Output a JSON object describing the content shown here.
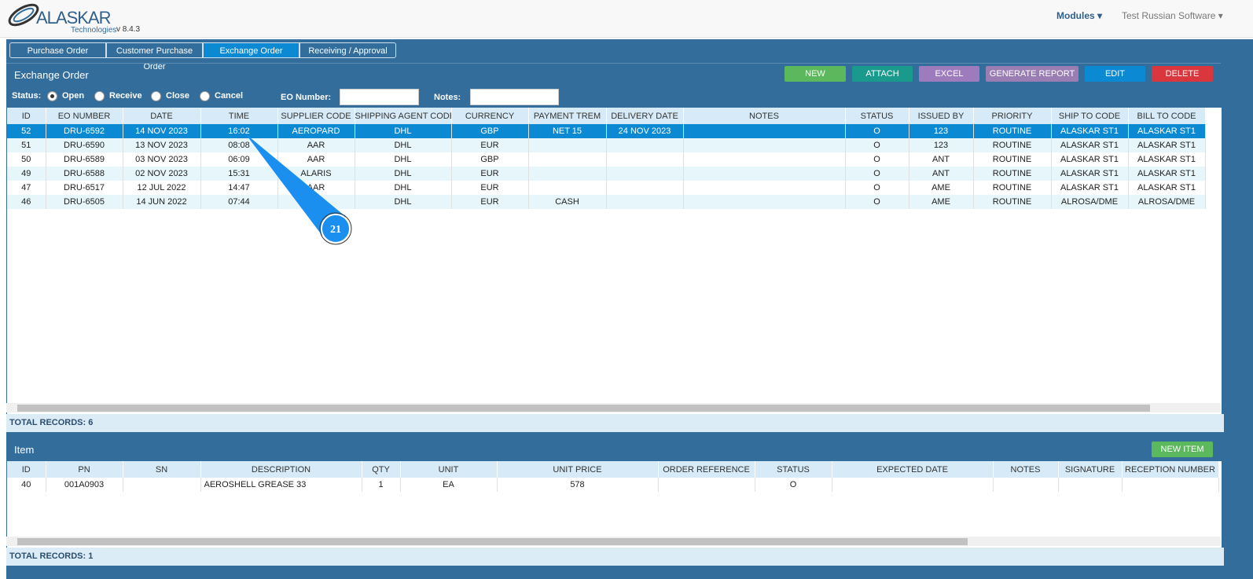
{
  "header": {
    "logo": "ALASKAR",
    "logo_sub": "Technologies",
    "version": "v 8.4.3",
    "nav": [
      "Modules",
      "Test Russian Software"
    ]
  },
  "tabs": [
    "Purchase Order",
    "Customer Purchase Order",
    "Exchange Order",
    "Receiving / Approval"
  ],
  "panel": {
    "title": "Exchange Order",
    "buttons": [
      "NEW",
      "ATTACH",
      "EXCEL",
      "GENERATE REPORT",
      "EDIT",
      "DELETE"
    ]
  },
  "filter": {
    "status_label": "Status:",
    "options": [
      "Open",
      "Receive",
      "Close",
      "Cancel"
    ],
    "eo_label": "EO Number:",
    "notes_label": "Notes:"
  },
  "orders": {
    "columns": [
      "ID",
      "EO NUMBER",
      "DATE",
      "TIME",
      "SUPPLIER CODE",
      "SHIPPING AGENT CODE",
      "CURRENCY",
      "PAYMENT TREM",
      "DELIVERY DATE",
      "NOTES",
      "STATUS",
      "ISSUED BY",
      "PRIORITY",
      "SHIP TO CODE",
      "BILL TO CODE"
    ],
    "rows": [
      [
        52,
        "DRU-6592",
        "14 NOV 2023",
        "16:02",
        "AEROPARD",
        "DHL",
        "GBP",
        "NET 15",
        "24 NOV 2023",
        null,
        "O",
        123,
        "ROUTINE",
        "ALASKAR ST1",
        "ALASKAR ST1"
      ],
      [
        51,
        "DRU-6590",
        "13 NOV 2023",
        "08:08",
        "AAR",
        "DHL",
        "EUR",
        null,
        null,
        null,
        "O",
        123,
        "ROUTINE",
        "ALASKAR ST1",
        "ALASKAR ST1"
      ],
      [
        50,
        "DRU-6589",
        "03 NOV 2023",
        "06:09",
        "AAR",
        "DHL",
        "GBP",
        null,
        null,
        null,
        "O",
        "ANT",
        "ROUTINE",
        "ALASKAR ST1",
        "ALASKAR ST1"
      ],
      [
        49,
        "DRU-6588",
        "02 NOV 2023",
        "15:31",
        "ALARIS",
        "DHL",
        "EUR",
        null,
        null,
        null,
        "O",
        "ANT",
        "ROUTINE",
        "ALASKAR ST1",
        "ALASKAR ST1"
      ],
      [
        47,
        "DRU-6517",
        "12 JUL 2022",
        "14:47",
        "AAR",
        "DHL",
        "EUR",
        null,
        null,
        null,
        "O",
        "AME",
        "ROUTINE",
        "ALASKAR ST1",
        "ALASKAR ST1"
      ],
      [
        46,
        "DRU-6505",
        "14 JUN 2022",
        "07:44",
        null,
        "DHL",
        "EUR",
        "CASH",
        null,
        null,
        "O",
        "AME",
        "ROUTINE",
        "ALROSA/DME",
        "ALROSA/DME"
      ]
    ],
    "total": "TOTAL RECORDS: 6"
  },
  "items": {
    "title": "Item",
    "button": "NEW ITEM",
    "columns": [
      "ID",
      "PN",
      "SN",
      "DESCRIPTION",
      "QTY",
      "UNIT",
      "UNIT PRICE",
      "ORDER REFERENCE",
      "STATUS",
      "EXPECTED DATE",
      "NOTES",
      "SIGNATURE",
      "RECEPTION NUMBER"
    ],
    "rows": [
      [
        40,
        "001A0903",
        null,
        "AEROSHELL GREASE 33",
        1,
        "EA",
        578,
        null,
        "O",
        null,
        null,
        null,
        null
      ]
    ],
    "total": "TOTAL RECORDS: 1"
  },
  "annotation": "21"
}
